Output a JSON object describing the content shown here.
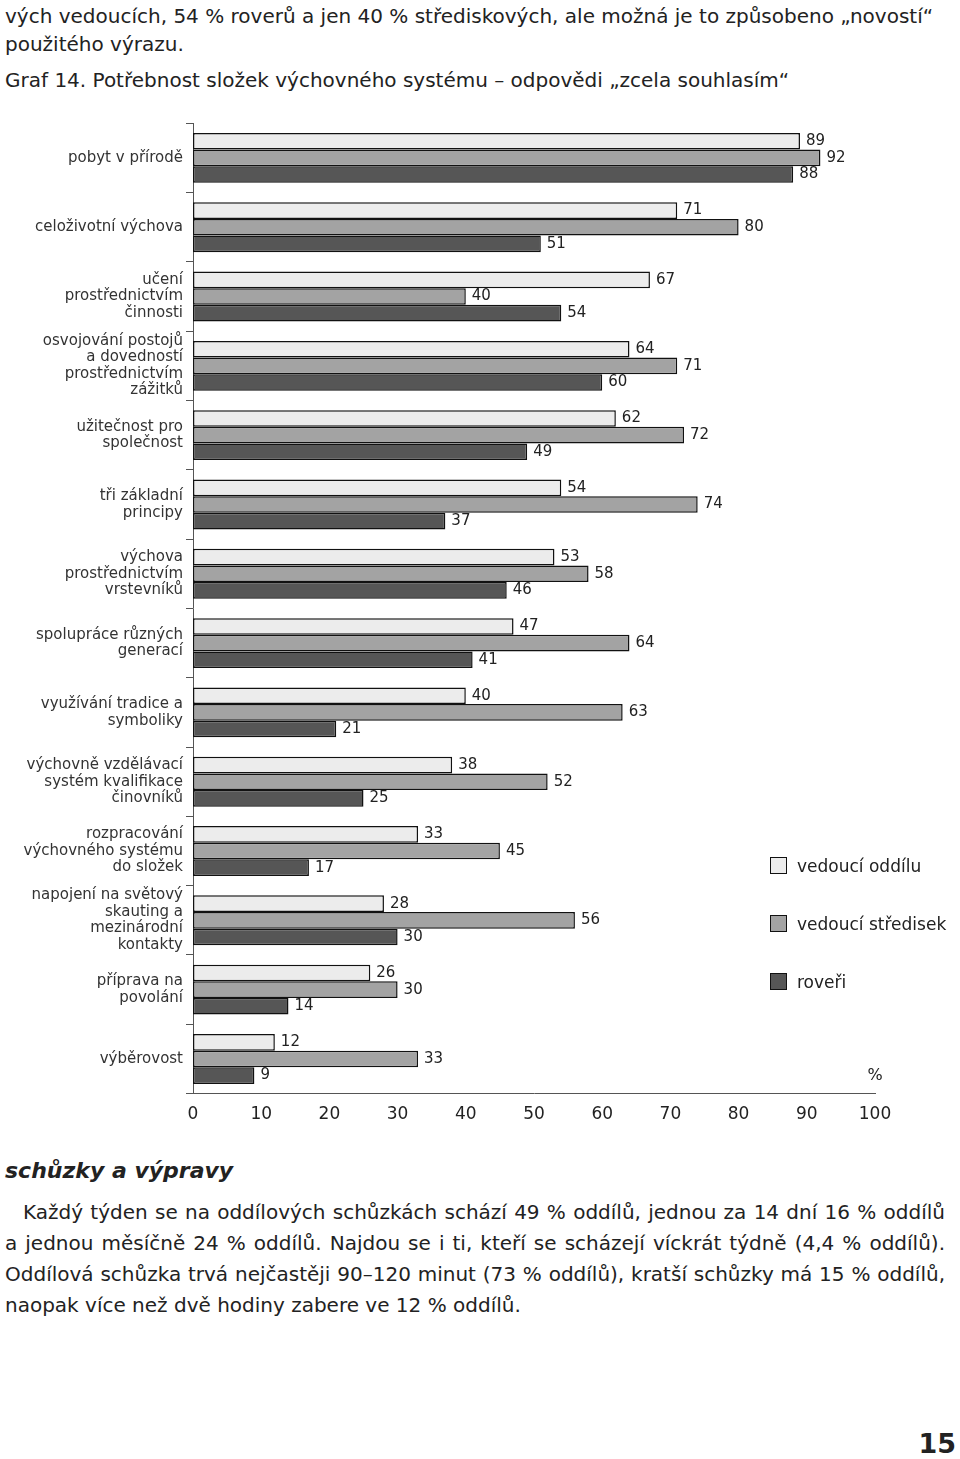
{
  "page": {
    "lead_text": "vých vedoucích, 54 % roverů a jen 40 % střediskových, ale možná je to způsobeno „novostí“ použitého výrazu.",
    "heading": "schůzky a výpravy",
    "paragraph": "Každý týden se na oddílových schůzkách schází 49 % oddílů, jednou za 14 dní 16 % oddílů a jednou měsíčně 24 % oddílů. Najdou se i ti, kteří se scházejí víckrát týdně (4,4 % oddílů). Oddílová schůzka trvá nejčastěji 90–120 minut (73 % oddílů), kratší schůzky má 15 % oddílů, naopak více než dvě hodiny zabere ve 12 % oddílů.",
    "page_number": "15"
  },
  "chart_data": {
    "type": "bar",
    "orientation": "horizontal",
    "title": "Graf 14. Potřebnost složek výchovného systému – odpovědi „zcela souhlasím“",
    "x_label": "%",
    "categories": [
      "pobyt v přírodě",
      "celoživotní výchova",
      "učení prostřednictvím činnosti",
      "osvojování postojů a dovedností prostřednictvím zážitků",
      "užitečnost pro společnost",
      "tři základní principy",
      "výchova prostřednictvím vrstevníků",
      "spolupráce různých generací",
      "využívání tradice a symboliky",
      "výchovně vzdělávací systém kvalifikace činovníků",
      "rozpracování výchovného systému do složek",
      "napojení na světový skauting a mezinárodní kontakty",
      "příprava na povolání",
      "výběrovost"
    ],
    "series": [
      {
        "name": "vedoucí oddílu",
        "color": "#ececec",
        "values": [
          89,
          71,
          67,
          64,
          62,
          54,
          53,
          47,
          40,
          38,
          33,
          28,
          26,
          12
        ]
      },
      {
        "name": "vedoucí středisek",
        "color": "#a3a3a3",
        "values": [
          92,
          80,
          40,
          71,
          72,
          74,
          58,
          64,
          63,
          52,
          45,
          56,
          30,
          33
        ]
      },
      {
        "name": "roveři",
        "color": "#565656",
        "values": [
          88,
          51,
          54,
          60,
          49,
          37,
          46,
          41,
          21,
          25,
          17,
          30,
          14,
          9
        ]
      }
    ],
    "xlim": [
      0,
      100
    ],
    "xticks": [
      0,
      10,
      20,
      30,
      40,
      50,
      60,
      70,
      80,
      90,
      100
    ],
    "grid": false,
    "legend": "lower right",
    "data_labels": true
  }
}
